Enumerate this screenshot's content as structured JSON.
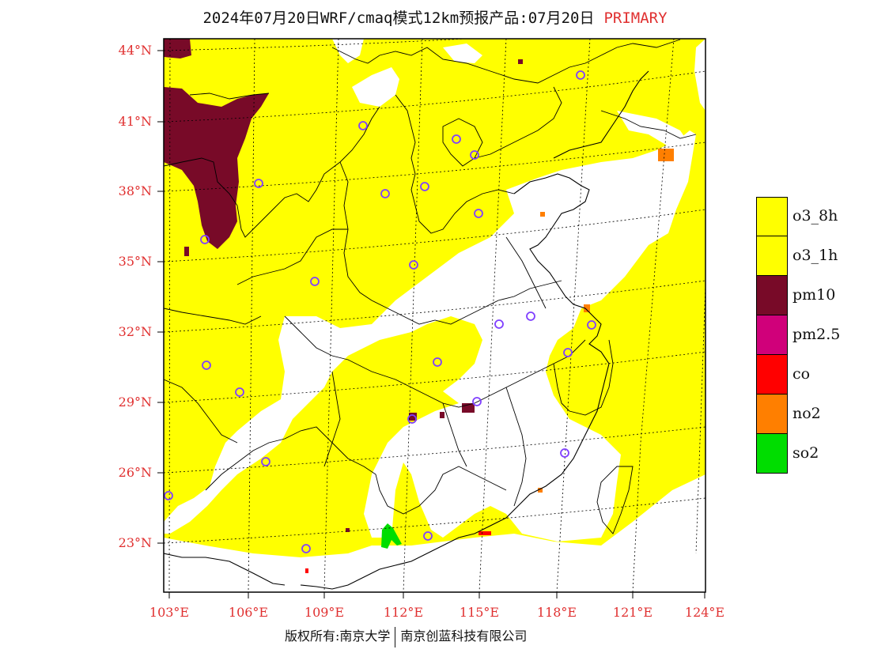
{
  "title": {
    "main": "2024年07月20日WRF/cmaq模式12km预报产品:07月20日",
    "tag": "PRIMARY"
  },
  "map": {
    "lat_labels": [
      "44°N",
      "41°N",
      "38°N",
      "35°N",
      "32°N",
      "29°N",
      "26°N",
      "23°N"
    ],
    "lon_labels": [
      "103°E",
      "106°E",
      "109°E",
      "112°E",
      "115°E",
      "118°E",
      "121°E",
      "124°E"
    ],
    "fill_colors": {
      "o3_8h": "#ffff00",
      "pm10": "#780a28",
      "no2": "#ff7f00",
      "so2": "#00dd00",
      "co": "#ff0000",
      "city_marker": "#8040ff"
    }
  },
  "legend": [
    {
      "label": "o3_8h",
      "color": "#ffff00"
    },
    {
      "label": "o3_1h",
      "color": "#ffff00"
    },
    {
      "label": "pm10",
      "color": "#780a28"
    },
    {
      "label": "pm2.5",
      "color": "#d0007a"
    },
    {
      "label": "co",
      "color": "#ff0000"
    },
    {
      "label": "no2",
      "color": "#ff7f00"
    },
    {
      "label": "so2",
      "color": "#00dd00"
    }
  ],
  "footer": {
    "left": "版权所有:南京大学",
    "right": "南京创蓝科技有限公司"
  }
}
